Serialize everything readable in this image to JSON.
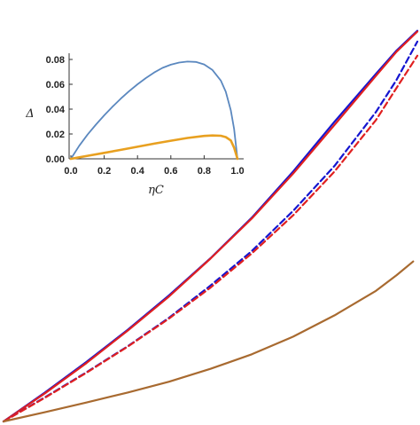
{
  "chart_data": [
    {
      "type": "line",
      "title": "",
      "xlabel": "",
      "ylabel": "",
      "axes_visible": false,
      "xlim": [
        0,
        1
      ],
      "ylim": [
        0,
        1
      ],
      "series": [
        {
          "color": "#1515d0",
          "dash": "solid",
          "points": [
            [
              0,
              0
            ],
            [
              0.1,
              0.072
            ],
            [
              0.2,
              0.148
            ],
            [
              0.3,
              0.228
            ],
            [
              0.4,
              0.314
            ],
            [
              0.5,
              0.406
            ],
            [
              0.6,
              0.507
            ],
            [
              0.7,
              0.622
            ],
            [
              0.8,
              0.746
            ],
            [
              0.9,
              0.865
            ],
            [
              0.95,
              0.923
            ],
            [
              1,
              0.972
            ]
          ]
        },
        {
          "color": "#e02020",
          "dash": "solid",
          "points": [
            [
              0,
              0
            ],
            [
              0.1,
              0.07
            ],
            [
              0.2,
              0.145
            ],
            [
              0.3,
              0.226
            ],
            [
              0.4,
              0.311
            ],
            [
              0.5,
              0.405
            ],
            [
              0.6,
              0.505
            ],
            [
              0.7,
              0.617
            ],
            [
              0.8,
              0.738
            ],
            [
              0.9,
              0.86
            ],
            [
              0.95,
              0.92
            ],
            [
              1,
              0.97
            ]
          ]
        },
        {
          "color": "#1515d0",
          "dash": "dashed",
          "points": [
            [
              0,
              0
            ],
            [
              0.1,
              0.06
            ],
            [
              0.2,
              0.122
            ],
            [
              0.3,
              0.187
            ],
            [
              0.4,
              0.258
            ],
            [
              0.5,
              0.338
            ],
            [
              0.6,
              0.424
            ],
            [
              0.7,
              0.524
            ],
            [
              0.8,
              0.636
            ],
            [
              0.9,
              0.77
            ],
            [
              0.95,
              0.85
            ],
            [
              1,
              0.945
            ]
          ]
        },
        {
          "color": "#e02020",
          "dash": "dashed",
          "points": [
            [
              0,
              0
            ],
            [
              0.1,
              0.059
            ],
            [
              0.2,
              0.121
            ],
            [
              0.3,
              0.186
            ],
            [
              0.4,
              0.256
            ],
            [
              0.5,
              0.333
            ],
            [
              0.6,
              0.418
            ],
            [
              0.7,
              0.513
            ],
            [
              0.8,
              0.622
            ],
            [
              0.9,
              0.75
            ],
            [
              0.95,
              0.83
            ],
            [
              1,
              0.91
            ]
          ]
        },
        {
          "color": "#a86a30",
          "dash": "solid",
          "points": [
            [
              0,
              0
            ],
            [
              0.1,
              0.023
            ],
            [
              0.2,
              0.047
            ],
            [
              0.3,
              0.072
            ],
            [
              0.4,
              0.099
            ],
            [
              0.5,
              0.131
            ],
            [
              0.6,
              0.167
            ],
            [
              0.7,
              0.211
            ],
            [
              0.8,
              0.264
            ],
            [
              0.9,
              0.325
            ],
            [
              0.95,
              0.364
            ],
            [
              0.99,
              0.398
            ]
          ]
        }
      ]
    },
    {
      "type": "line",
      "title": "",
      "xlabel": "ηC",
      "ylabel": "Δ",
      "xlim": [
        0,
        1
      ],
      "ylim": [
        0,
        0.085
      ],
      "x_ticks": [
        0.0,
        0.2,
        0.4,
        0.6,
        0.8,
        1.0
      ],
      "x_tick_labels": [
        "0.0",
        "0.2",
        "0.4",
        "0.6",
        "0.8",
        "1.0"
      ],
      "y_ticks": [
        0.0,
        0.02,
        0.04,
        0.06,
        0.08
      ],
      "y_tick_labels": [
        "0.00",
        "0.02",
        "0.04",
        "0.06",
        "0.08"
      ],
      "series": [
        {
          "color": "#5b88bf",
          "dash": "solid",
          "points": [
            [
              0,
              0
            ],
            [
              0.05,
              0.0105
            ],
            [
              0.1,
              0.0195
            ],
            [
              0.15,
              0.0275
            ],
            [
              0.2,
              0.035
            ],
            [
              0.25,
              0.042
            ],
            [
              0.3,
              0.0485
            ],
            [
              0.35,
              0.0545
            ],
            [
              0.4,
              0.06
            ],
            [
              0.45,
              0.065
            ],
            [
              0.5,
              0.0695
            ],
            [
              0.55,
              0.0732
            ],
            [
              0.6,
              0.0758
            ],
            [
              0.65,
              0.0775
            ],
            [
              0.7,
              0.0783
            ],
            [
              0.75,
              0.078
            ],
            [
              0.8,
              0.076
            ],
            [
              0.85,
              0.0715
            ],
            [
              0.9,
              0.063
            ],
            [
              0.93,
              0.054
            ],
            [
              0.96,
              0.039
            ],
            [
              0.98,
              0.024
            ],
            [
              0.99,
              0.012
            ],
            [
              1,
              0
            ]
          ]
        },
        {
          "color": "#e8a020",
          "dash": "solid",
          "points": [
            [
              0,
              0
            ],
            [
              0.05,
              0.0012
            ],
            [
              0.1,
              0.0024
            ],
            [
              0.2,
              0.0048
            ],
            [
              0.3,
              0.0072
            ],
            [
              0.4,
              0.0097
            ],
            [
              0.5,
              0.0122
            ],
            [
              0.6,
              0.0146
            ],
            [
              0.7,
              0.0168
            ],
            [
              0.8,
              0.0184
            ],
            [
              0.85,
              0.0188
            ],
            [
              0.9,
              0.0186
            ],
            [
              0.93,
              0.0175
            ],
            [
              0.96,
              0.0148
            ],
            [
              0.98,
              0.009
            ],
            [
              1,
              0
            ]
          ]
        }
      ]
    }
  ]
}
